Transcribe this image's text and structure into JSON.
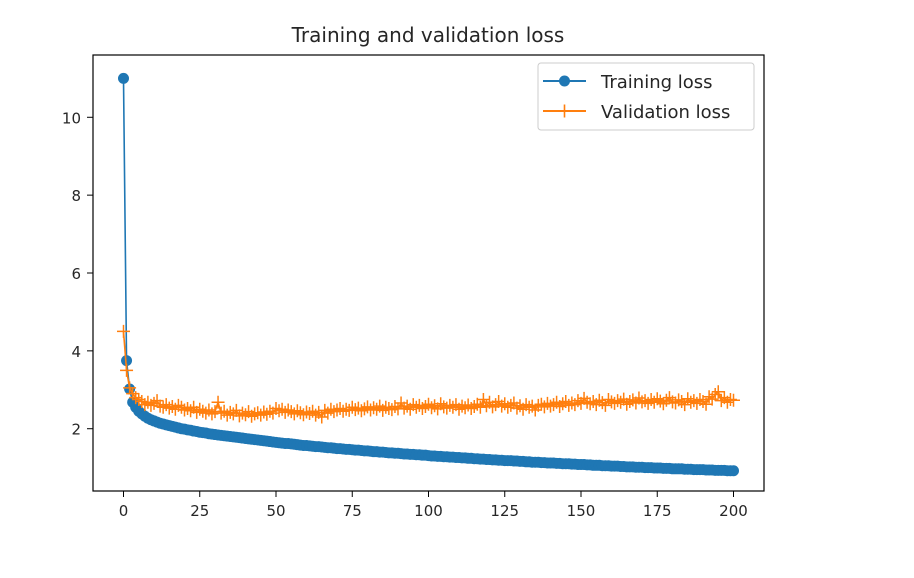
{
  "chart_data": {
    "type": "line",
    "title": "Training and validation loss",
    "xlabel": "",
    "ylabel": "",
    "xlim": [
      -10,
      210
    ],
    "ylim": [
      0.4,
      11.6
    ],
    "xticks": [
      0,
      25,
      50,
      75,
      100,
      125,
      150,
      175,
      200
    ],
    "yticks": [
      2,
      4,
      6,
      8,
      10
    ],
    "grid": false,
    "legend_position": "top-right",
    "x_start": 0,
    "series": [
      {
        "name": "Training loss",
        "color": "#1f77b4",
        "marker": "circle",
        "values": [
          11.0,
          3.75,
          3.02,
          2.68,
          2.55,
          2.45,
          2.38,
          2.32,
          2.27,
          2.23,
          2.2,
          2.17,
          2.14,
          2.12,
          2.1,
          2.08,
          2.06,
          2.04,
          2.02,
          2.0,
          1.99,
          1.97,
          1.96,
          1.94,
          1.93,
          1.91,
          1.9,
          1.89,
          1.87,
          1.86,
          1.85,
          1.84,
          1.83,
          1.82,
          1.81,
          1.8,
          1.79,
          1.78,
          1.77,
          1.76,
          1.75,
          1.74,
          1.73,
          1.72,
          1.71,
          1.7,
          1.69,
          1.68,
          1.67,
          1.66,
          1.65,
          1.64,
          1.63,
          1.62,
          1.62,
          1.61,
          1.6,
          1.59,
          1.58,
          1.57,
          1.57,
          1.56,
          1.55,
          1.54,
          1.54,
          1.53,
          1.52,
          1.51,
          1.51,
          1.5,
          1.49,
          1.49,
          1.48,
          1.47,
          1.47,
          1.46,
          1.45,
          1.45,
          1.44,
          1.43,
          1.43,
          1.42,
          1.41,
          1.41,
          1.4,
          1.4,
          1.39,
          1.38,
          1.38,
          1.37,
          1.37,
          1.36,
          1.35,
          1.35,
          1.34,
          1.34,
          1.33,
          1.33,
          1.32,
          1.32,
          1.31,
          1.3,
          1.3,
          1.29,
          1.29,
          1.28,
          1.28,
          1.27,
          1.27,
          1.26,
          1.26,
          1.25,
          1.25,
          1.24,
          1.24,
          1.23,
          1.23,
          1.22,
          1.22,
          1.21,
          1.21,
          1.2,
          1.2,
          1.19,
          1.19,
          1.18,
          1.18,
          1.18,
          1.17,
          1.17,
          1.16,
          1.16,
          1.15,
          1.15,
          1.14,
          1.14,
          1.14,
          1.13,
          1.13,
          1.12,
          1.12,
          1.12,
          1.11,
          1.11,
          1.1,
          1.1,
          1.1,
          1.09,
          1.09,
          1.08,
          1.08,
          1.08,
          1.07,
          1.07,
          1.06,
          1.06,
          1.06,
          1.05,
          1.05,
          1.05,
          1.04,
          1.04,
          1.04,
          1.03,
          1.03,
          1.02,
          1.02,
          1.02,
          1.01,
          1.01,
          1.01,
          1.0,
          1.0,
          1.0,
          0.99,
          0.99,
          0.99,
          0.98,
          0.98,
          0.98,
          0.97,
          0.97,
          0.97,
          0.97,
          0.96,
          0.96,
          0.96,
          0.95,
          0.95,
          0.95,
          0.95,
          0.94,
          0.94,
          0.94,
          0.93,
          0.93,
          0.93,
          0.93,
          0.92,
          0.92,
          0.92
        ]
      },
      {
        "name": "Validation loss",
        "color": "#ff7f0e",
        "marker": "plus",
        "values": [
          4.5,
          3.5,
          3.05,
          2.9,
          2.8,
          2.75,
          2.7,
          2.62,
          2.68,
          2.6,
          2.65,
          2.72,
          2.58,
          2.55,
          2.62,
          2.53,
          2.57,
          2.5,
          2.6,
          2.55,
          2.48,
          2.52,
          2.46,
          2.55,
          2.42,
          2.5,
          2.45,
          2.4,
          2.48,
          2.38,
          2.44,
          2.68,
          2.4,
          2.45,
          2.35,
          2.42,
          2.38,
          2.47,
          2.33,
          2.4,
          2.36,
          2.44,
          2.32,
          2.38,
          2.41,
          2.35,
          2.43,
          2.37,
          2.45,
          2.4,
          2.52,
          2.46,
          2.5,
          2.42,
          2.48,
          2.44,
          2.38,
          2.46,
          2.41,
          2.36,
          2.43,
          2.39,
          2.45,
          2.35,
          2.42,
          2.3,
          2.47,
          2.4,
          2.5,
          2.44,
          2.48,
          2.52,
          2.45,
          2.5,
          2.47,
          2.55,
          2.49,
          2.53,
          2.46,
          2.51,
          2.56,
          2.48,
          2.54,
          2.5,
          2.58,
          2.47,
          2.55,
          2.52,
          2.49,
          2.57,
          2.51,
          2.66,
          2.53,
          2.58,
          2.5,
          2.62,
          2.55,
          2.6,
          2.52,
          2.57,
          2.63,
          2.54,
          2.59,
          2.51,
          2.64,
          2.56,
          2.53,
          2.6,
          2.55,
          2.62,
          2.5,
          2.58,
          2.54,
          2.61,
          2.52,
          2.57,
          2.63,
          2.55,
          2.75,
          2.59,
          2.68,
          2.56,
          2.62,
          2.7,
          2.58,
          2.64,
          2.55,
          2.6,
          2.66,
          2.53,
          2.59,
          2.5,
          2.62,
          2.55,
          2.58,
          2.48,
          2.6,
          2.63,
          2.56,
          2.65,
          2.58,
          2.62,
          2.68,
          2.57,
          2.64,
          2.7,
          2.6,
          2.66,
          2.62,
          2.72,
          2.65,
          2.78,
          2.68,
          2.64,
          2.7,
          2.62,
          2.73,
          2.67,
          2.6,
          2.75,
          2.69,
          2.65,
          2.72,
          2.68,
          2.76,
          2.63,
          2.7,
          2.74,
          2.66,
          2.79,
          2.69,
          2.72,
          2.65,
          2.75,
          2.68,
          2.77,
          2.71,
          2.64,
          2.73,
          2.8,
          2.69,
          2.66,
          2.74,
          2.7,
          2.62,
          2.77,
          2.68,
          2.72,
          2.65,
          2.75,
          2.7,
          2.63,
          2.82,
          2.76,
          2.88,
          2.95,
          2.72,
          2.8,
          2.68,
          2.75,
          2.73
        ]
      }
    ]
  }
}
